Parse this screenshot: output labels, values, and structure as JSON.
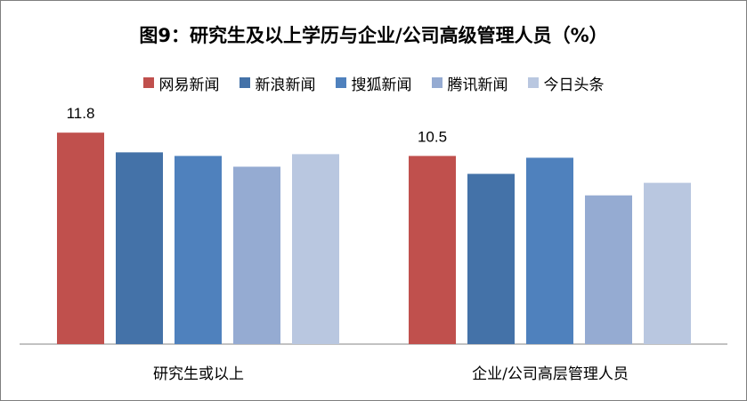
{
  "chart_data": {
    "type": "bar",
    "title": "图9：研究生及以上学历与企业/公司高级管理人员（%）",
    "categories": [
      "研究生或以上",
      "企业/公司高层管理人员"
    ],
    "series": [
      {
        "name": "网易新闻",
        "color": "#c0504d",
        "values": [
          11.8,
          10.5
        ],
        "labels": [
          "11.8",
          "10.5"
        ]
      },
      {
        "name": "新浪新闻",
        "color": "#4472a8",
        "values": [
          10.7,
          9.5
        ],
        "labels": [
          null,
          null
        ]
      },
      {
        "name": "搜狐新闻",
        "color": "#4f81bd",
        "values": [
          10.5,
          10.4
        ],
        "labels": [
          null,
          null
        ]
      },
      {
        "name": "腾讯新闻",
        "color": "#95abd2",
        "values": [
          9.9,
          8.3
        ],
        "labels": [
          null,
          null
        ]
      },
      {
        "name": "今日头条",
        "color": "#b9c7e0",
        "values": [
          10.6,
          9.0
        ],
        "labels": [
          null,
          null
        ]
      }
    ],
    "ylim": [
      0,
      13
    ],
    "grid": false,
    "legend": "top-center"
  }
}
